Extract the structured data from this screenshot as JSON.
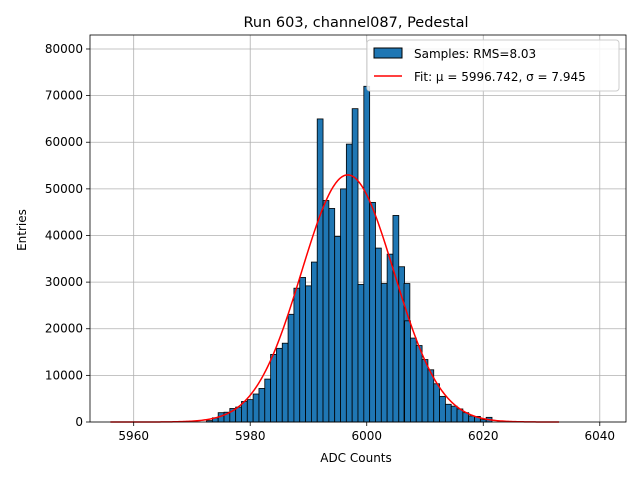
{
  "chart_data": {
    "type": "bar",
    "title": "Run 603, channel087, Pedestal",
    "xlabel": "ADC Counts",
    "ylabel": "Entries",
    "xlim": [
      5952.5,
      6044.5
    ],
    "ylim": [
      0,
      83000
    ],
    "x_ticks": [
      5960,
      5980,
      6000,
      6020,
      6040
    ],
    "y_ticks": [
      0,
      10000,
      20000,
      30000,
      40000,
      50000,
      60000,
      70000,
      80000
    ],
    "grid": true,
    "legend_position": "upper-right",
    "series": [
      {
        "name": "Samples: RMS=8.03",
        "kind": "histogram",
        "color": "#1f77b4",
        "edgecolor": "#000000",
        "bin_width": 1,
        "x": [
          5973,
          5974,
          5975,
          5976,
          5977,
          5978,
          5979,
          5980,
          5981,
          5982,
          5983,
          5984,
          5985,
          5986,
          5987,
          5988,
          5989,
          5990,
          5991,
          5992,
          5993,
          5994,
          5995,
          5996,
          5997,
          5998,
          5999,
          6000,
          6001,
          6002,
          6003,
          6004,
          6005,
          6006,
          6006.9,
          6007,
          6008,
          6009,
          6010,
          6011,
          6012,
          6013,
          6014,
          6015,
          6016,
          6017,
          6018,
          6019,
          6020,
          6021
        ],
        "values": [
          300,
          900,
          2000,
          2100,
          2900,
          3200,
          4400,
          4800,
          6000,
          7200,
          9200,
          14500,
          15800,
          16900,
          23100,
          28700,
          31000,
          29200,
          34300,
          65000,
          47500,
          45800,
          39800,
          50000,
          59600,
          67200,
          29500,
          72000,
          47100,
          37300,
          29700,
          36000,
          44300,
          33300,
          29700,
          21700,
          18000,
          16400,
          13400,
          11200,
          8200,
          5500,
          3800,
          3400,
          2800,
          2000,
          1300,
          1200,
          500,
          1000
        ]
      },
      {
        "name": "Fit: μ = 5996.742, σ = 7.945",
        "kind": "gaussian",
        "color": "#ff0000",
        "mu": 5996.742,
        "sigma": 7.945,
        "amplitude": 53000,
        "x_range": [
          5956,
          6033
        ]
      }
    ]
  }
}
